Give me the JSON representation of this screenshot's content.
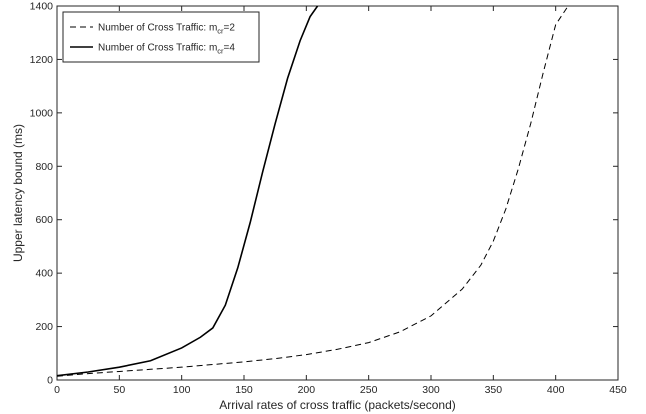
{
  "chart_data": {
    "type": "line",
    "title": "",
    "xlabel": "Arrival rates of cross traffic (packets/second)",
    "ylabel": "Upper latency bound (ms)",
    "xlim": [
      0,
      450
    ],
    "ylim": [
      0,
      1400
    ],
    "xticks": [
      "0",
      "50",
      "100",
      "150",
      "200",
      "250",
      "300",
      "350",
      "400",
      "450"
    ],
    "yticks": [
      "0",
      "200",
      "400",
      "600",
      "800",
      "1000",
      "1200",
      "1400"
    ],
    "grid": false,
    "legend_position": "top-left",
    "series": [
      {
        "name_prefix": "Number of Cross Traffic: m",
        "name_sub": "cr",
        "name_suffix": "=2",
        "style": "dashed",
        "color": "#000000",
        "x": [
          0,
          25,
          50,
          75,
          100,
          125,
          150,
          175,
          200,
          225,
          250,
          275,
          300,
          325,
          340,
          350,
          360,
          370,
          380,
          390,
          400,
          410
        ],
        "y": [
          14,
          24,
          32,
          40,
          48,
          58,
          68,
          80,
          95,
          115,
          140,
          180,
          240,
          340,
          430,
          520,
          640,
          790,
          960,
          1150,
          1330,
          1400
        ]
      },
      {
        "name_prefix": "Number of Cross Traffic: m",
        "name_sub": "cr",
        "name_suffix": "=4",
        "style": "solid",
        "color": "#000000",
        "x": [
          0,
          25,
          50,
          75,
          100,
          115,
          125,
          135,
          145,
          155,
          165,
          175,
          185,
          195,
          203,
          209
        ],
        "y": [
          16,
          30,
          48,
          72,
          120,
          160,
          195,
          280,
          420,
          590,
          780,
          960,
          1130,
          1270,
          1360,
          1400
        ]
      }
    ]
  }
}
